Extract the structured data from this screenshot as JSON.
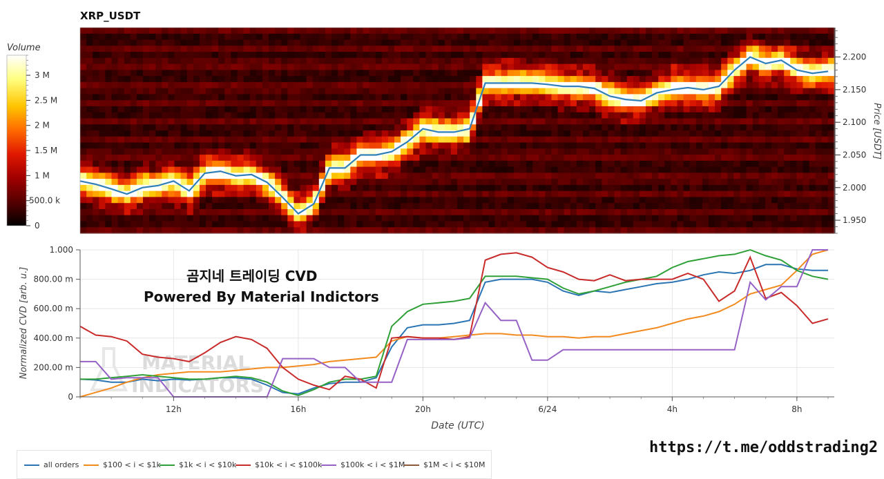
{
  "chart_data": [
    {
      "type": "heatmap",
      "title": "XRP_USDT",
      "ylabel": "Price [USDT]",
      "ylim": [
        1.93,
        2.245
      ],
      "yticks": [
        1.95,
        2.0,
        2.05,
        2.1,
        2.15,
        2.2
      ],
      "ytick_labels": [
        "1.950",
        "2.000",
        "2.050",
        "2.100",
        "2.150",
        "2.200"
      ],
      "colorbar": {
        "title": "Volume",
        "range": [
          0,
          3400000
        ],
        "ticks": [
          0,
          500000,
          1000000,
          1500000,
          2000000,
          2500000,
          3000000
        ],
        "tick_labels": [
          "0",
          "500.0 k",
          "1 M",
          "1.5 M",
          "2 M",
          "2.5 M",
          "3 M"
        ],
        "colors": [
          "#000000",
          "#4a0000",
          "#a00000",
          "#e01800",
          "#ff6a00",
          "#ffc400",
          "#ffff80",
          "#ffffff"
        ]
      },
      "price_line_color": "#2f7fb8",
      "x_hours": [
        0,
        0.5,
        1,
        1.5,
        2,
        2.5,
        3,
        3.5,
        4,
        4.5,
        5,
        5.5,
        6,
        6.5,
        7,
        7.5,
        8,
        8.5,
        9,
        9.5,
        10,
        10.5,
        11,
        11.5,
        12,
        12.5,
        13,
        13.5,
        14,
        14.5,
        15,
        15.5,
        16,
        16.5,
        17,
        17.5,
        18,
        18.5,
        19,
        19.5,
        20,
        20.5,
        21,
        21.5,
        22,
        22.5,
        23,
        23.5,
        24
      ],
      "price": [
        2.01,
        2.005,
        1.998,
        1.99,
        2.0,
        2.003,
        2.01,
        1.995,
        2.022,
        2.025,
        2.018,
        2.02,
        2.008,
        1.985,
        1.96,
        1.975,
        2.03,
        2.03,
        2.05,
        2.05,
        2.055,
        2.07,
        2.09,
        2.085,
        2.085,
        2.09,
        2.16,
        2.16,
        2.16,
        2.16,
        2.158,
        2.155,
        2.155,
        2.152,
        2.14,
        2.135,
        2.133,
        2.145,
        2.15,
        2.153,
        2.15,
        2.155,
        2.18,
        2.2,
        2.19,
        2.195,
        2.18,
        2.175,
        2.178
      ]
    },
    {
      "type": "line",
      "xlabel": "Date (UTC)",
      "ylabel": "Normalized CVD [arb. u.]",
      "ylim": [
        0,
        1
      ],
      "yticks": [
        0,
        0.2,
        0.4,
        0.6,
        0.8,
        1.0
      ],
      "ytick_labels": [
        "0",
        "200.00 m",
        "400.00 m",
        "600.00 m",
        "800.00 m",
        "1.000"
      ],
      "xticks_hours": [
        3,
        7,
        11,
        15,
        19,
        23
      ],
      "xtick_labels": [
        "12h",
        "16h",
        "20h",
        "6/24",
        "4h",
        "8h"
      ],
      "x_hours": [
        0,
        0.5,
        1,
        1.5,
        2,
        2.5,
        3,
        3.5,
        4,
        4.5,
        5,
        5.5,
        6,
        6.5,
        7,
        7.5,
        8,
        8.5,
        9,
        9.5,
        10,
        10.5,
        11,
        11.5,
        12,
        12.5,
        13,
        13.5,
        14,
        14.5,
        15,
        15.5,
        16,
        16.5,
        17,
        17.5,
        18,
        18.5,
        19,
        19.5,
        20,
        20.5,
        21,
        21.5,
        22,
        22.5,
        23,
        23.5,
        24
      ],
      "series": [
        {
          "name": "all orders",
          "color": "#2a74b4",
          "values": [
            0.12,
            0.115,
            0.1,
            0.1,
            0.12,
            0.11,
            0.12,
            0.115,
            0.12,
            0.13,
            0.13,
            0.12,
            0.08,
            0.03,
            0.02,
            0.06,
            0.09,
            0.1,
            0.1,
            0.13,
            0.34,
            0.47,
            0.49,
            0.49,
            0.5,
            0.52,
            0.78,
            0.8,
            0.8,
            0.8,
            0.78,
            0.72,
            0.69,
            0.72,
            0.71,
            0.73,
            0.75,
            0.77,
            0.78,
            0.8,
            0.83,
            0.85,
            0.84,
            0.86,
            0.9,
            0.9,
            0.87,
            0.86,
            0.86
          ]
        },
        {
          "name": "$100 < i < $1k",
          "color": "#f28a1e",
          "values": [
            0.0,
            0.03,
            0.06,
            0.1,
            0.13,
            0.15,
            0.16,
            0.17,
            0.17,
            0.17,
            0.18,
            0.19,
            0.2,
            0.2,
            0.21,
            0.22,
            0.24,
            0.25,
            0.26,
            0.27,
            0.38,
            0.41,
            0.4,
            0.4,
            0.41,
            0.42,
            0.43,
            0.43,
            0.42,
            0.42,
            0.41,
            0.41,
            0.4,
            0.41,
            0.41,
            0.43,
            0.45,
            0.47,
            0.5,
            0.53,
            0.55,
            0.58,
            0.63,
            0.7,
            0.73,
            0.76,
            0.86,
            0.97,
            1.0
          ]
        },
        {
          "name": "$1k < i < $10k",
          "color": "#2ea037",
          "values": [
            0.12,
            0.12,
            0.13,
            0.14,
            0.15,
            0.14,
            0.13,
            0.12,
            0.12,
            0.13,
            0.14,
            0.13,
            0.1,
            0.04,
            0.01,
            0.05,
            0.1,
            0.12,
            0.12,
            0.14,
            0.48,
            0.58,
            0.63,
            0.64,
            0.65,
            0.67,
            0.82,
            0.82,
            0.82,
            0.81,
            0.8,
            0.74,
            0.7,
            0.72,
            0.75,
            0.78,
            0.8,
            0.82,
            0.88,
            0.92,
            0.94,
            0.96,
            0.97,
            1.0,
            0.96,
            0.93,
            0.86,
            0.82,
            0.8
          ]
        },
        {
          "name": "$10k < i < $100k",
          "color": "#c92a2a",
          "values": [
            0.48,
            0.42,
            0.41,
            0.38,
            0.29,
            0.27,
            0.26,
            0.24,
            0.3,
            0.37,
            0.41,
            0.39,
            0.33,
            0.2,
            0.12,
            0.08,
            0.05,
            0.14,
            0.12,
            0.06,
            0.4,
            0.41,
            0.4,
            0.4,
            0.39,
            0.41,
            0.93,
            0.97,
            0.98,
            0.95,
            0.88,
            0.85,
            0.8,
            0.79,
            0.83,
            0.79,
            0.8,
            0.8,
            0.8,
            0.84,
            0.8,
            0.65,
            0.72,
            0.95,
            0.67,
            0.71,
            0.62,
            0.5,
            0.53
          ]
        },
        {
          "name": "$100k < i < $1M",
          "color": "#9561c5",
          "values": [
            0.24,
            0.24,
            0.12,
            0.13,
            0.13,
            0.13,
            0.0,
            0.0,
            0.0,
            0.0,
            0.0,
            0.0,
            0.0,
            0.26,
            0.26,
            0.26,
            0.2,
            0.2,
            0.1,
            0.1,
            0.1,
            0.39,
            0.39,
            0.39,
            0.39,
            0.4,
            0.64,
            0.52,
            0.52,
            0.25,
            0.25,
            0.32,
            0.32,
            0.32,
            0.32,
            0.32,
            0.32,
            0.32,
            0.32,
            0.32,
            0.32,
            0.32,
            0.32,
            0.78,
            0.66,
            0.75,
            0.75,
            1.0,
            1.0
          ]
        },
        {
          "name": "$1M < i < $10M",
          "color": "#8b5a3c",
          "values": []
        }
      ]
    }
  ],
  "overlay": {
    "line1": "곰지네 트레이딩 CVD",
    "line2": "Powered By Material Indictors",
    "watermark1": "MATERIAL",
    "watermark2": "INDICATORS",
    "link": "https://t.me/oddstrading2"
  }
}
